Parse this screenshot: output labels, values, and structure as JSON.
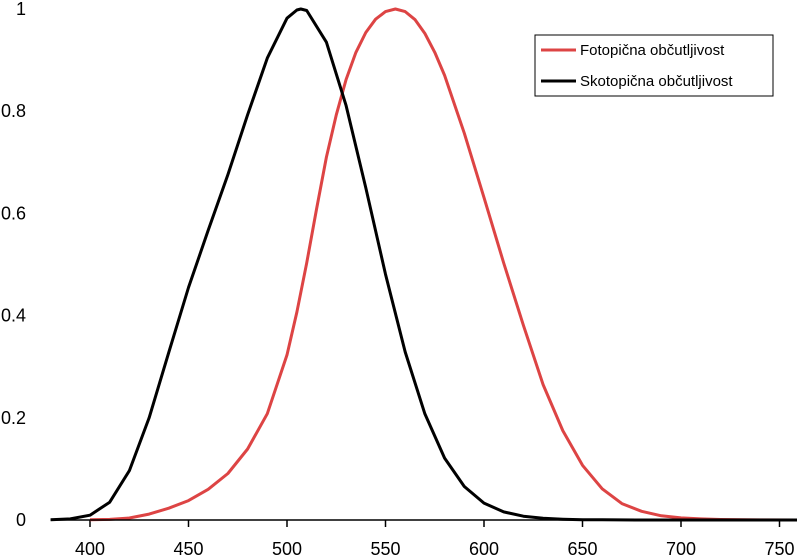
{
  "chart_data": {
    "type": "line",
    "title": "",
    "xlabel": "",
    "ylabel": "",
    "xlim": [
      380,
      780
    ],
    "ylim": [
      0,
      1
    ],
    "x_ticks": [
      "400",
      "450",
      "500",
      "550",
      "600",
      "650",
      "700",
      "750"
    ],
    "y_ticks": [
      "0",
      "0.2",
      "0.4",
      "0.6",
      "0.8",
      "1"
    ],
    "grid": false,
    "legend_position": "top-right",
    "series": [
      {
        "name": "Fotopična občutljivost",
        "color": "#dd4444",
        "x": [
          400,
          410,
          420,
          430,
          440,
          450,
          460,
          470,
          480,
          490,
          500,
          505,
          510,
          515,
          520,
          525,
          530,
          535,
          540,
          545,
          550,
          555,
          560,
          565,
          570,
          575,
          580,
          590,
          600,
          610,
          620,
          630,
          640,
          650,
          660,
          670,
          680,
          690,
          700,
          710,
          720,
          740,
          760,
          780
        ],
        "y": [
          0.0004,
          0.0012,
          0.004,
          0.0116,
          0.023,
          0.038,
          0.06,
          0.091,
          0.139,
          0.208,
          0.323,
          0.407,
          0.503,
          0.608,
          0.71,
          0.793,
          0.862,
          0.915,
          0.954,
          0.98,
          0.995,
          1.0,
          0.995,
          0.979,
          0.952,
          0.915,
          0.87,
          0.757,
          0.631,
          0.503,
          0.381,
          0.265,
          0.175,
          0.107,
          0.061,
          0.032,
          0.017,
          0.0082,
          0.0041,
          0.0021,
          0.00105,
          0.00025,
          6e-05,
          1e-05
        ]
      },
      {
        "name": "Skotopična občutljivost",
        "color": "#000000",
        "x": [
          380,
          390,
          400,
          410,
          420,
          430,
          440,
          450,
          460,
          470,
          480,
          490,
          500,
          505,
          507,
          510,
          520,
          530,
          540,
          550,
          560,
          570,
          580,
          590,
          600,
          610,
          620,
          630,
          640,
          650,
          660,
          680,
          700,
          750,
          780
        ],
        "y": [
          0.0006,
          0.0022,
          0.0093,
          0.0348,
          0.0966,
          0.1998,
          0.3281,
          0.455,
          0.567,
          0.676,
          0.793,
          0.904,
          0.982,
          0.998,
          1.0,
          0.997,
          0.935,
          0.811,
          0.65,
          0.481,
          0.3288,
          0.2076,
          0.1212,
          0.0655,
          0.03315,
          0.01593,
          0.00737,
          0.003335,
          0.001497,
          0.000677,
          0.000313,
          7.16e-05,
          1.78e-05,
          8e-07,
          1e-07
        ]
      }
    ]
  }
}
